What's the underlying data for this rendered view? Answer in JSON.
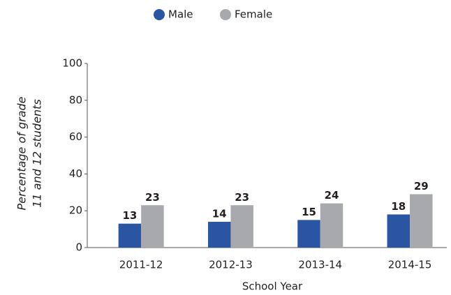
{
  "chart_data": {
    "type": "bar",
    "xlabel": "School Year",
    "ylabel": [
      "Percentage of grade",
      "11 and 12  students"
    ],
    "categories": [
      "2011-12",
      "2012-13",
      "2013-14",
      "2014-15"
    ],
    "series": [
      {
        "name": "Male",
        "color": "#2a55a3",
        "values": [
          13,
          14,
          15,
          18
        ]
      },
      {
        "name": "Female",
        "color": "#a7a9ac",
        "values": [
          23,
          23,
          24,
          29
        ]
      }
    ],
    "ylim": [
      0,
      100
    ],
    "yticks": [
      0,
      20,
      40,
      60,
      80,
      100
    ],
    "grid": false,
    "legend": "top"
  }
}
